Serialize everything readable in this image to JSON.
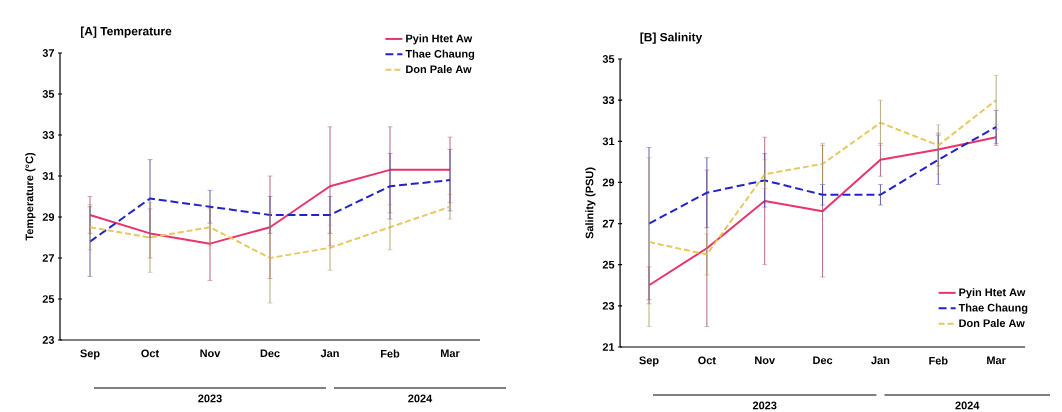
{
  "chart_data": [
    {
      "type": "line",
      "title": "[A] Temperature",
      "ylabel": "Temperature (°C)",
      "categories": [
        "Sep",
        "Oct",
        "Nov",
        "Dec",
        "Jan",
        "Feb",
        "Mar"
      ],
      "ylim": [
        23,
        37
      ],
      "yticks": [
        23,
        25,
        27,
        29,
        31,
        33,
        35,
        37
      ],
      "legend": "top right",
      "grid": false,
      "marker": "none",
      "annotations": [
        "2023",
        "2024"
      ],
      "series": [
        {
          "name": "Pyin Htet Aw",
          "color": "#e8336b",
          "line_style": "solid",
          "values": [
            29.1,
            28.2,
            27.7,
            28.5,
            30.5,
            31.3,
            31.3
          ],
          "errors": [
            0.9,
            1.2,
            1.8,
            2.5,
            2.9,
            2.1,
            1.6
          ]
        },
        {
          "name": "Thae Chaung",
          "color": "#2222cc",
          "line_style": "dashed",
          "values": [
            27.8,
            29.9,
            29.5,
            29.1,
            29.1,
            30.5,
            30.8
          ],
          "errors": [
            1.7,
            1.9,
            0.8,
            0.9,
            0.9,
            1.6,
            1.5
          ]
        },
        {
          "name": "Don Pale Aw",
          "color": "#e8c860",
          "line_style": "dashed",
          "values": [
            28.5,
            28.0,
            28.5,
            27.0,
            27.5,
            28.5,
            29.5
          ],
          "errors": [
            1.1,
            1.7,
            0.9,
            2.2,
            1.1,
            1.1,
            0.6
          ]
        }
      ]
    },
    {
      "type": "line",
      "title": "[B] Salinity",
      "ylabel": "Salinity (PSU)",
      "categories": [
        "Sep",
        "Oct",
        "Nov",
        "Dec",
        "Jan",
        "Feb",
        "Mar"
      ],
      "ylim": [
        21,
        35
      ],
      "yticks": [
        21,
        23,
        25,
        27,
        29,
        31,
        33,
        35
      ],
      "legend": "bottom right",
      "grid": false,
      "marker": "none",
      "annotations": [
        "2023",
        "2024"
      ],
      "series": [
        {
          "name": "Pyin Htet Aw",
          "color": "#e8336b",
          "line_style": "solid",
          "values": [
            24.0,
            25.8,
            28.1,
            27.6,
            30.1,
            30.6,
            31.2
          ],
          "errors": [
            0.9,
            3.8,
            3.1,
            3.2,
            0.8,
            0.8,
            0.4
          ]
        },
        {
          "name": "Thae Chaung",
          "color": "#2222cc",
          "line_style": "dashed",
          "values": [
            27.0,
            28.5,
            29.1,
            28.4,
            28.4,
            30.1,
            31.7
          ],
          "errors": [
            3.7,
            1.7,
            1.3,
            0.5,
            0.5,
            1.2,
            0.8
          ]
        },
        {
          "name": "Don Pale Aw",
          "color": "#e8c860",
          "line_style": "dashed",
          "values": [
            26.1,
            25.5,
            29.4,
            29.9,
            31.9,
            30.8,
            33.0
          ],
          "errors": [
            4.1,
            1.0,
            0.7,
            1.0,
            1.1,
            [
              29.4,
              31.8
            ],
            1.2
          ]
        }
      ]
    }
  ]
}
